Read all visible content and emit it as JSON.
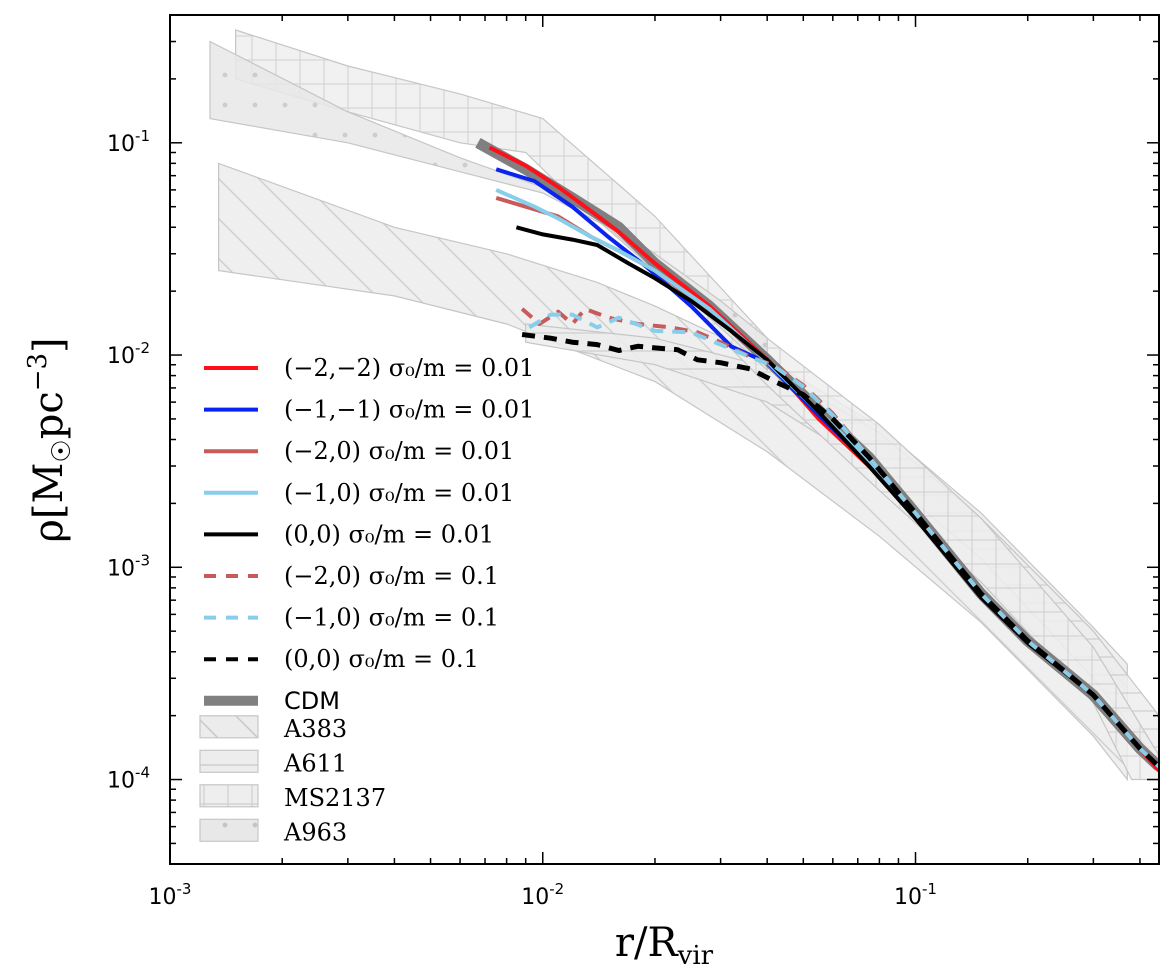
{
  "chart_data": {
    "type": "line",
    "xscale": "log",
    "yscale": "log",
    "xlim": [
      0.001,
      0.45
    ],
    "ylim": [
      4e-05,
      0.4
    ],
    "xlabel": "r/R_vir",
    "ylabel": "ρ[M☉pc⁻³]",
    "x_ticks": [
      {
        "value": 0.001,
        "base": "10",
        "exp": "-3"
      },
      {
        "value": 0.01,
        "base": "10",
        "exp": "-2"
      },
      {
        "value": 0.1,
        "base": "10",
        "exp": "-1"
      }
    ],
    "y_ticks": [
      {
        "value": 0.0001,
        "base": "10",
        "exp": "-4"
      },
      {
        "value": 0.001,
        "base": "10",
        "exp": "-3"
      },
      {
        "value": 0.01,
        "base": "10",
        "exp": "-2"
      },
      {
        "value": 0.1,
        "base": "10",
        "exp": "-1"
      }
    ],
    "bands": [
      {
        "name": "A383",
        "pattern": "diag",
        "upper": [
          [
            0.00135,
            0.08
          ],
          [
            0.004,
            0.04
          ],
          [
            0.008,
            0.03
          ],
          [
            0.014,
            0.022
          ],
          [
            0.02,
            0.017
          ],
          [
            0.04,
            0.0096
          ],
          [
            0.08,
            0.0046
          ],
          [
            0.15,
            0.0018
          ],
          [
            0.3,
            0.00052
          ],
          [
            0.37,
            0.00035
          ]
        ],
        "lower": [
          [
            0.00135,
            0.025
          ],
          [
            0.004,
            0.019
          ],
          [
            0.008,
            0.014
          ],
          [
            0.02,
            0.0075
          ],
          [
            0.04,
            0.0035
          ],
          [
            0.08,
            0.0014
          ],
          [
            0.15,
            0.00055
          ],
          [
            0.3,
            0.00016
          ],
          [
            0.37,
            0.0001
          ]
        ]
      },
      {
        "name": "A611",
        "pattern": "horiz",
        "upper": [
          [
            0.009,
            0.014
          ],
          [
            0.02,
            0.012
          ],
          [
            0.04,
            0.0088
          ],
          [
            0.08,
            0.0043
          ],
          [
            0.15,
            0.0017
          ],
          [
            0.3,
            0.0005
          ],
          [
            0.45,
            0.0002
          ]
        ],
        "lower": [
          [
            0.009,
            0.0115
          ],
          [
            0.02,
            0.009
          ],
          [
            0.04,
            0.006
          ],
          [
            0.08,
            0.0028
          ],
          [
            0.15,
            0.0011
          ],
          [
            0.3,
            0.0003
          ],
          [
            0.45,
            0.00012
          ]
        ]
      },
      {
        "name": "MS2137",
        "pattern": "grid",
        "upper": [
          [
            0.0015,
            0.34
          ],
          [
            0.003,
            0.23
          ],
          [
            0.006,
            0.17
          ],
          [
            0.01,
            0.13
          ],
          [
            0.02,
            0.045
          ],
          [
            0.04,
            0.012
          ],
          [
            0.08,
            0.0047
          ],
          [
            0.15,
            0.0017
          ],
          [
            0.3,
            0.00042
          ],
          [
            0.45,
            0.00013
          ]
        ],
        "lower": [
          [
            0.0015,
            0.2
          ],
          [
            0.003,
            0.14
          ],
          [
            0.006,
            0.1
          ],
          [
            0.009,
            0.09
          ],
          [
            0.012,
            0.055
          ],
          [
            0.02,
            0.025
          ],
          [
            0.04,
            0.0072
          ],
          [
            0.08,
            0.0023
          ],
          [
            0.15,
            0.00085
          ],
          [
            0.3,
            0.00023
          ],
          [
            0.38,
            0.0001
          ],
          [
            0.45,
            0.0001
          ]
        ]
      },
      {
        "name": "A963",
        "pattern": "dots",
        "upper": [
          [
            0.00128,
            0.3
          ],
          [
            0.003,
            0.14
          ],
          [
            0.006,
            0.085
          ],
          [
            0.012,
            0.055
          ],
          [
            0.02,
            0.03
          ],
          [
            0.03,
            0.018
          ],
          [
            0.04,
            0.012
          ]
        ],
        "lower": [
          [
            0.00128,
            0.13
          ],
          [
            0.003,
            0.1
          ],
          [
            0.006,
            0.073
          ],
          [
            0.01,
            0.058
          ],
          [
            0.015,
            0.04
          ],
          [
            0.025,
            0.018
          ],
          [
            0.04,
            0.0085
          ]
        ]
      }
    ],
    "series": [
      {
        "name": "CDM",
        "label": "CDM",
        "color": "#808080",
        "dash": "solid",
        "width": 11,
        "x": [
          0.0067,
          0.009,
          0.012,
          0.016,
          0.02,
          0.028,
          0.04,
          0.055,
          0.075,
          0.1,
          0.15,
          0.2,
          0.3,
          0.4,
          0.45
        ],
        "y": [
          0.1,
          0.075,
          0.055,
          0.04,
          0.027,
          0.017,
          0.0095,
          0.0055,
          0.0033,
          0.0018,
          0.00075,
          0.00045,
          0.00025,
          0.00014,
          0.000115
        ]
      },
      {
        "name": "(-2,-2) s0/m=0.01",
        "label": "(−2,−2) σ₀/m = 0.01",
        "color": "#ff0f1a",
        "dash": "solid",
        "width": 4,
        "x": [
          0.0072,
          0.009,
          0.011,
          0.013,
          0.016,
          0.02,
          0.028,
          0.04,
          0.055,
          0.075,
          0.1,
          0.15,
          0.2,
          0.3,
          0.4,
          0.45
        ],
        "y": [
          0.095,
          0.078,
          0.062,
          0.05,
          0.038,
          0.027,
          0.017,
          0.0095,
          0.005,
          0.003,
          0.0018,
          0.00075,
          0.00045,
          0.00025,
          0.00014,
          0.00011
        ]
      },
      {
        "name": "(-1,-1) s0/m=0.01",
        "label": "(−1,−1) σ₀/m = 0.01",
        "color": "#0a24f0",
        "dash": "solid",
        "width": 4,
        "x": [
          0.0075,
          0.0095,
          0.012,
          0.015,
          0.019,
          0.025,
          0.032,
          0.04,
          0.055,
          0.075,
          0.1,
          0.15,
          0.2,
          0.3,
          0.4,
          0.45
        ],
        "y": [
          0.075,
          0.066,
          0.05,
          0.036,
          0.026,
          0.017,
          0.011,
          0.0092,
          0.0052,
          0.0031,
          0.0018,
          0.00075,
          0.00045,
          0.00025,
          0.00014,
          0.000115
        ]
      },
      {
        "name": "(-2,0) s0/m=0.01",
        "label": "(−2,0) σ₀/m = 0.01",
        "color": "#c85a5a",
        "dash": "solid",
        "width": 4,
        "x": [
          0.0075,
          0.009,
          0.011,
          0.0135,
          0.016,
          0.02,
          0.028,
          0.04,
          0.055,
          0.075,
          0.1,
          0.15,
          0.2,
          0.3,
          0.4,
          0.45
        ],
        "y": [
          0.055,
          0.05,
          0.045,
          0.036,
          0.031,
          0.025,
          0.016,
          0.0093,
          0.0054,
          0.0032,
          0.0018,
          0.00075,
          0.00045,
          0.00025,
          0.00014,
          0.000115
        ]
      },
      {
        "name": "(-1,0) s0/m=0.01",
        "label": "(−1,0) σ₀/m = 0.01",
        "color": "#87ceeb",
        "dash": "solid",
        "width": 4,
        "x": [
          0.0075,
          0.0095,
          0.011,
          0.0135,
          0.016,
          0.02,
          0.028,
          0.04,
          0.055,
          0.075,
          0.1,
          0.15,
          0.2,
          0.3,
          0.4,
          0.45
        ],
        "y": [
          0.06,
          0.05,
          0.044,
          0.036,
          0.031,
          0.025,
          0.0165,
          0.0093,
          0.0054,
          0.0032,
          0.0018,
          0.00075,
          0.00045,
          0.00025,
          0.00014,
          0.000115
        ]
      },
      {
        "name": "(0,0) s0/m=0.01",
        "label": "(0,0) σ₀/m = 0.01",
        "color": "#000000",
        "dash": "solid",
        "width": 4,
        "x": [
          0.0085,
          0.01,
          0.012,
          0.014,
          0.017,
          0.02,
          0.025,
          0.032,
          0.04,
          0.055,
          0.075,
          0.1,
          0.15,
          0.2,
          0.3,
          0.4,
          0.45
        ],
        "y": [
          0.04,
          0.037,
          0.035,
          0.033,
          0.027,
          0.023,
          0.018,
          0.013,
          0.0095,
          0.0054,
          0.003,
          0.0017,
          0.00072,
          0.00044,
          0.00025,
          0.00014,
          0.000115
        ]
      },
      {
        "name": "(-2,0) s0/m=0.1",
        "label": "(−2,0) σ₀/m = 0.1",
        "color": "#c85a5a",
        "dash": "dashed",
        "width": 4,
        "x": [
          0.0088,
          0.0098,
          0.011,
          0.012,
          0.013,
          0.015,
          0.018,
          0.022,
          0.026,
          0.03,
          0.036,
          0.042,
          0.05,
          0.06,
          0.075,
          0.1,
          0.15,
          0.2,
          0.3,
          0.4,
          0.45
        ],
        "y": [
          0.0165,
          0.014,
          0.016,
          0.014,
          0.0165,
          0.015,
          0.014,
          0.0135,
          0.0128,
          0.0115,
          0.0098,
          0.0089,
          0.0072,
          0.0053,
          0.0033,
          0.0018,
          0.00075,
          0.00045,
          0.00025,
          0.00014,
          0.000115
        ]
      },
      {
        "name": "(-1,0) s0/m=0.1",
        "label": "(−1,0) σ₀/m = 0.1",
        "color": "#87ceeb",
        "dash": "dashed",
        "width": 4,
        "x": [
          0.0092,
          0.0105,
          0.012,
          0.014,
          0.016,
          0.02,
          0.025,
          0.03,
          0.036,
          0.042,
          0.05,
          0.06,
          0.075,
          0.1,
          0.15,
          0.2,
          0.3,
          0.4,
          0.45
        ],
        "y": [
          0.0135,
          0.0155,
          0.0155,
          0.0135,
          0.015,
          0.013,
          0.0128,
          0.0112,
          0.0098,
          0.0088,
          0.0071,
          0.0052,
          0.0033,
          0.0018,
          0.00075,
          0.00045,
          0.00025,
          0.00014,
          0.000115
        ]
      },
      {
        "name": "(0,0) s0/m=0.1",
        "label": "(0,0) σ₀/m = 0.1",
        "color": "#000000",
        "dash": "dashed",
        "width": 5,
        "x": [
          0.0088,
          0.0105,
          0.012,
          0.014,
          0.016,
          0.018,
          0.02,
          0.023,
          0.026,
          0.03,
          0.036,
          0.042,
          0.05,
          0.06,
          0.075,
          0.1,
          0.15,
          0.2,
          0.3,
          0.4,
          0.45
        ],
        "y": [
          0.0125,
          0.012,
          0.0115,
          0.0112,
          0.0105,
          0.011,
          0.0108,
          0.0106,
          0.0095,
          0.0092,
          0.0086,
          0.0075,
          0.0065,
          0.005,
          0.0033,
          0.0018,
          0.00075,
          0.00045,
          0.00025,
          0.00014,
          0.000115
        ]
      }
    ],
    "legend": {
      "placement": "left",
      "entries": [
        {
          "label": "(−2,−2) σ₀/m = 0.01",
          "kind": "line",
          "color": "#ff0f1a",
          "dash": "solid"
        },
        {
          "label": "(−1,−1) σ₀/m = 0.01",
          "kind": "line",
          "color": "#0a24f0",
          "dash": "solid"
        },
        {
          "label": "(−2,0) σ₀/m = 0.01",
          "kind": "line",
          "color": "#c85a5a",
          "dash": "solid"
        },
        {
          "label": "(−1,0) σ₀/m = 0.01",
          "kind": "line",
          "color": "#87ceeb",
          "dash": "solid"
        },
        {
          "label": "(0,0) σ₀/m = 0.01",
          "kind": "line",
          "color": "#000000",
          "dash": "solid"
        },
        {
          "label": "(−2,0) σ₀/m = 0.1",
          "kind": "line",
          "color": "#c85a5a",
          "dash": "dashed"
        },
        {
          "label": "(−1,0) σ₀/m = 0.1",
          "kind": "line",
          "color": "#87ceeb",
          "dash": "dashed"
        },
        {
          "label": "(0,0) σ₀/m = 0.1",
          "kind": "line",
          "color": "#000000",
          "dash": "dashed"
        },
        {
          "label": "CDM",
          "kind": "thick",
          "color": "#808080",
          "dash": "solid"
        },
        {
          "label": "A383",
          "kind": "patch",
          "pattern": "diag"
        },
        {
          "label": "A611",
          "kind": "patch",
          "pattern": "horiz"
        },
        {
          "label": "MS2137",
          "kind": "patch",
          "pattern": "grid"
        },
        {
          "label": "A963",
          "kind": "patch",
          "pattern": "dots"
        }
      ]
    },
    "grid": false
  }
}
